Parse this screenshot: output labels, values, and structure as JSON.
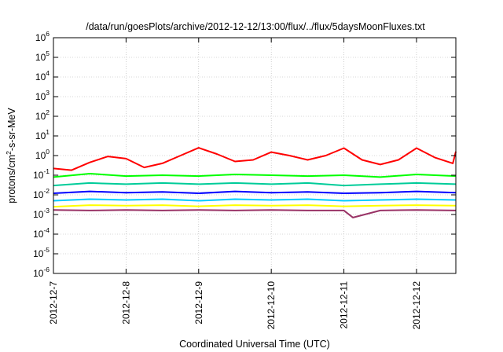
{
  "chart_data": {
    "type": "line",
    "title": "/data/run/goesPlots/archive/2012-12-12/13:00/flux/../flux/5daysMoonFluxes.txt",
    "xlabel": "Coordinated Universal Time (UTC)",
    "ylabel_base": "protons/cm",
    "ylabel_sup": "2",
    "ylabel_rest": "-s-sr-MeV",
    "y_scale": "log",
    "ylim": [
      1e-06,
      1000000.0
    ],
    "y_ticks": [
      {
        "base": "10",
        "exp": "-6",
        "value": 1e-06
      },
      {
        "base": "10",
        "exp": "-5",
        "value": 1e-05
      },
      {
        "base": "10",
        "exp": "-4",
        "value": 0.0001
      },
      {
        "base": "10",
        "exp": "-3",
        "value": 0.001
      },
      {
        "base": "10",
        "exp": "-2",
        "value": 0.01
      },
      {
        "base": "10",
        "exp": "-1",
        "value": 0.1
      },
      {
        "base": "10",
        "exp": "0",
        "value": 1
      },
      {
        "base": "10",
        "exp": "1",
        "value": 10
      },
      {
        "base": "10",
        "exp": "2",
        "value": 100
      },
      {
        "base": "10",
        "exp": "3",
        "value": 1000
      },
      {
        "base": "10",
        "exp": "4",
        "value": 10000
      },
      {
        "base": "10",
        "exp": "5",
        "value": 100000
      },
      {
        "base": "10",
        "exp": "6",
        "value": 1000000
      }
    ],
    "x_type": "date",
    "xlim": [
      "2012-12-07 00:00",
      "2012-12-12 13:00"
    ],
    "x_ticks": [
      "2012-12-7",
      "2012-12-8",
      "2012-12-9",
      "2012-12-10",
      "2012-12-11",
      "2012-12-12"
    ],
    "grid": true,
    "legend": "none",
    "series": [
      {
        "color": "#ff0000",
        "x": [
          "2012-12-07 00:00",
          "2012-12-07 06:00",
          "2012-12-07 12:00",
          "2012-12-07 18:00",
          "2012-12-08 00:00",
          "2012-12-08 06:00",
          "2012-12-08 12:00",
          "2012-12-08 18:00",
          "2012-12-09 00:00",
          "2012-12-09 06:00",
          "2012-12-09 12:00",
          "2012-12-09 18:00",
          "2012-12-10 00:00",
          "2012-12-10 06:00",
          "2012-12-10 12:00",
          "2012-12-10 18:00",
          "2012-12-11 00:00",
          "2012-12-11 06:00",
          "2012-12-11 12:00",
          "2012-12-11 18:00",
          "2012-12-12 00:00",
          "2012-12-12 06:00",
          "2012-12-12 12:00",
          "2012-12-12 13:00"
        ],
        "y": [
          0.22,
          0.18,
          0.45,
          0.9,
          0.7,
          0.25,
          0.4,
          1.0,
          2.5,
          1.2,
          0.5,
          0.6,
          1.5,
          1.0,
          0.6,
          1.0,
          2.4,
          0.6,
          0.35,
          0.6,
          2.4,
          0.8,
          0.4,
          1.6
        ]
      },
      {
        "color": "#00ff00",
        "x": [
          "2012-12-07 00:00",
          "2012-12-07 12:00",
          "2012-12-08 00:00",
          "2012-12-08 12:00",
          "2012-12-09 00:00",
          "2012-12-09 12:00",
          "2012-12-10 00:00",
          "2012-12-10 12:00",
          "2012-12-11 00:00",
          "2012-12-11 12:00",
          "2012-12-12 00:00",
          "2012-12-12 13:00"
        ],
        "y": [
          0.08,
          0.12,
          0.09,
          0.1,
          0.09,
          0.11,
          0.1,
          0.09,
          0.1,
          0.08,
          0.11,
          0.09
        ]
      },
      {
        "color": "#00cc99",
        "x": [
          "2012-12-07 00:00",
          "2012-12-07 12:00",
          "2012-12-08 00:00",
          "2012-12-08 12:00",
          "2012-12-09 00:00",
          "2012-12-09 12:00",
          "2012-12-10 00:00",
          "2012-12-10 12:00",
          "2012-12-11 00:00",
          "2012-12-11 12:00",
          "2012-12-12 00:00",
          "2012-12-12 13:00"
        ],
        "y": [
          0.03,
          0.04,
          0.035,
          0.04,
          0.035,
          0.04,
          0.035,
          0.04,
          0.03,
          0.035,
          0.04,
          0.035
        ]
      },
      {
        "color": "#0000ff",
        "x": [
          "2012-12-07 00:00",
          "2012-12-07 12:00",
          "2012-12-08 00:00",
          "2012-12-08 12:00",
          "2012-12-09 00:00",
          "2012-12-09 12:00",
          "2012-12-10 00:00",
          "2012-12-10 12:00",
          "2012-12-11 00:00",
          "2012-12-11 12:00",
          "2012-12-12 00:00",
          "2012-12-12 13:00"
        ],
        "y": [
          0.012,
          0.015,
          0.013,
          0.014,
          0.012,
          0.015,
          0.013,
          0.014,
          0.012,
          0.013,
          0.015,
          0.013
        ]
      },
      {
        "color": "#00ccff",
        "x": [
          "2012-12-07 00:00",
          "2012-12-07 12:00",
          "2012-12-08 00:00",
          "2012-12-08 12:00",
          "2012-12-09 00:00",
          "2012-12-09 12:00",
          "2012-12-10 00:00",
          "2012-12-10 12:00",
          "2012-12-11 00:00",
          "2012-12-11 12:00",
          "2012-12-12 00:00",
          "2012-12-12 13:00"
        ],
        "y": [
          0.005,
          0.006,
          0.0055,
          0.006,
          0.005,
          0.006,
          0.0055,
          0.006,
          0.005,
          0.0055,
          0.006,
          0.0055
        ]
      },
      {
        "color": "#ffff00",
        "x": [
          "2012-12-07 00:00",
          "2012-12-07 12:00",
          "2012-12-08 00:00",
          "2012-12-08 12:00",
          "2012-12-09 00:00",
          "2012-12-09 12:00",
          "2012-12-10 00:00",
          "2012-12-10 12:00",
          "2012-12-11 00:00",
          "2012-12-11 12:00",
          "2012-12-12 00:00",
          "2012-12-12 13:00"
        ],
        "y": [
          0.0025,
          0.003,
          0.0028,
          0.003,
          0.0026,
          0.003,
          0.0028,
          0.003,
          0.0026,
          0.0028,
          0.003,
          0.0028
        ]
      },
      {
        "color": "#993366",
        "x": [
          "2012-12-07 00:00",
          "2012-12-07 12:00",
          "2012-12-08 00:00",
          "2012-12-08 12:00",
          "2012-12-09 00:00",
          "2012-12-09 12:00",
          "2012-12-10 00:00",
          "2012-12-10 12:00",
          "2012-12-11 00:00",
          "2012-12-11 03:00",
          "2012-12-11 12:00",
          "2012-12-12 00:00",
          "2012-12-12 13:00"
        ],
        "y": [
          0.0017,
          0.0016,
          0.0017,
          0.0016,
          0.0017,
          0.0016,
          0.0017,
          0.0016,
          0.0016,
          0.0007,
          0.0016,
          0.0017,
          0.0016
        ]
      }
    ]
  }
}
